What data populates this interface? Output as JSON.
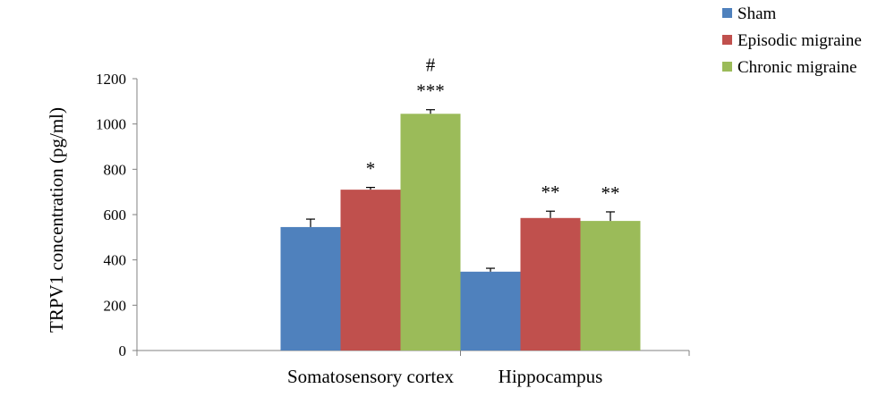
{
  "chart_data": {
    "type": "bar",
    "title": "",
    "xlabel": "",
    "ylabel": "TRPV1 concentration (pg/ml)",
    "ylim": [
      0,
      1200
    ],
    "yticks": [
      0,
      200,
      400,
      600,
      800,
      1000,
      1200
    ],
    "grid": false,
    "legend_position": "top-right",
    "categories": [
      "Somatosensory cortex",
      "Hippocampus"
    ],
    "series": [
      {
        "name": "Sham",
        "color": "#4F81BD",
        "values": [
          545,
          348
        ],
        "errors": [
          35,
          15
        ],
        "annotations": [
          "",
          ""
        ]
      },
      {
        "name": "Episodic migraine",
        "color": "#C0504D",
        "values": [
          710,
          585
        ],
        "errors": [
          10,
          30
        ],
        "annotations": [
          "*",
          "**"
        ]
      },
      {
        "name": "Chronic migraine",
        "color": "#9BBB59",
        "values": [
          1045,
          572
        ],
        "errors": [
          18,
          40
        ],
        "annotations": [
          "***",
          "**"
        ]
      }
    ],
    "extra_annotations": [
      {
        "category_index": 0,
        "series_index": 2,
        "text": "#"
      }
    ]
  }
}
